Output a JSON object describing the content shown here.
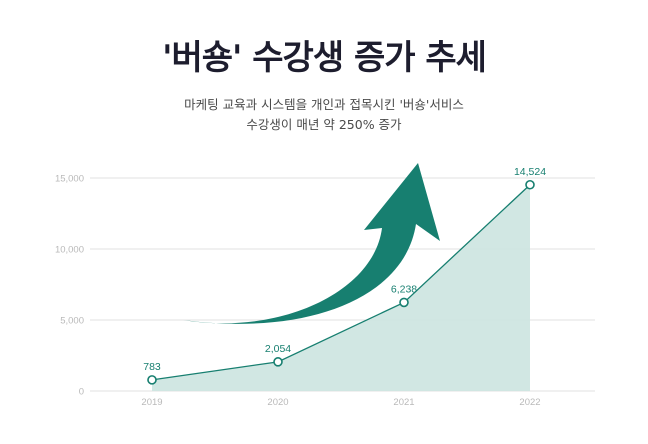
{
  "header": {
    "title": "'버숑' 수강생 증가 추세",
    "subtitle_line1": "마케팅 교육과 시스템을 개인과 접목시킨 '버숑'서비스",
    "subtitle_line2": "수강생이 매년 약 250% 증가"
  },
  "colors": {
    "accent": "#177f70",
    "area_fill": "#cfe6e1",
    "grid": "#e2e2e2",
    "title": "#1d1d2e"
  },
  "chart_data": {
    "type": "area",
    "categories": [
      "2019",
      "2020",
      "2021",
      "2022"
    ],
    "values": [
      783,
      2054,
      6238,
      14524
    ],
    "value_labels": [
      "783",
      "2,054",
      "6,238",
      "14,524"
    ],
    "y_ticks": [
      0,
      5000,
      10000,
      15000
    ],
    "y_tick_labels": [
      "0",
      "5,000",
      "10,000",
      "15,000"
    ],
    "ylim": [
      0,
      15000
    ],
    "grid": true,
    "legend": "none",
    "annotations": [
      "upward-trend-arrow"
    ]
  }
}
